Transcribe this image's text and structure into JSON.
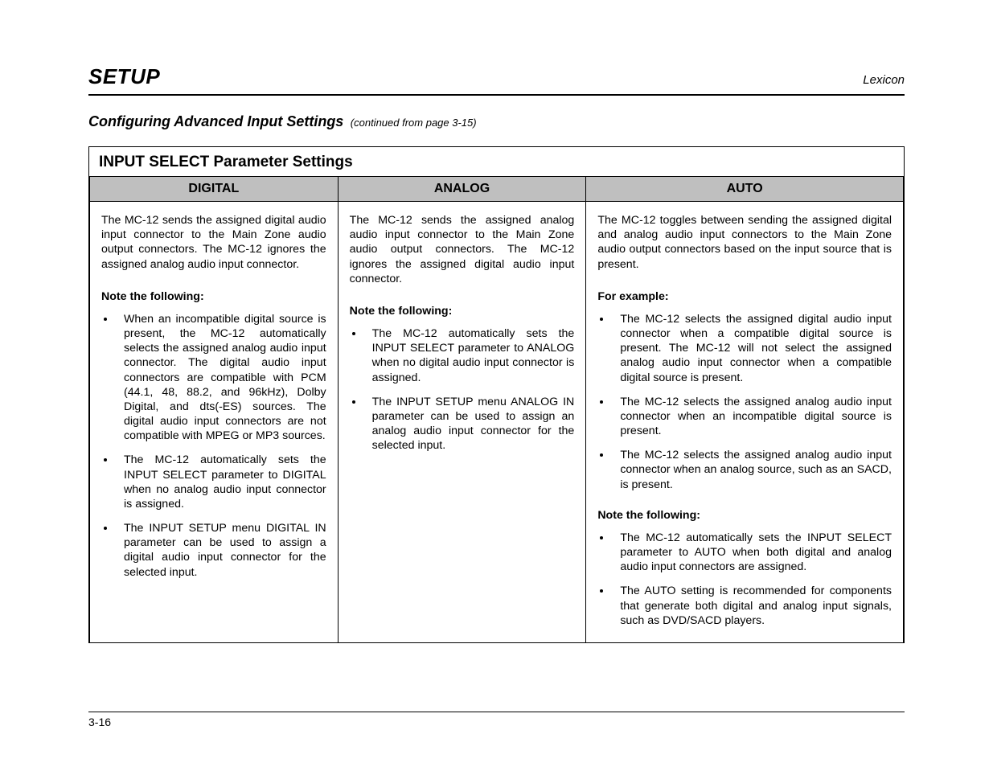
{
  "header": {
    "section": "SETUP",
    "brand": "Lexicon"
  },
  "subheading": {
    "main": "Configuring Advanced Input Settings",
    "continued": "(continued from page 3-15)"
  },
  "box_title": "INPUT SELECT Parameter Settings",
  "columns": {
    "digital": {
      "header": "DIGITAL",
      "intro": "The MC-12 sends the assigned digital audio input connector to the Main Zone audio output connectors. The MC-12 ignores the assigned analog audio input connector.",
      "note_heading": "Note the following:",
      "bullets": [
        "When an incompatible digital source is present, the MC-12 automatically selects the assigned analog audio input connector. The digital audio input connectors are compatible with PCM (44.1, 48, 88.2, and 96kHz), Dolby Digital, and dts(-ES) sources. The digital audio input connectors are not compatible with MPEG or MP3 sources.",
        "The MC-12 automatically sets the INPUT SELECT parameter to DIGITAL when no analog audio input connector is assigned.",
        "The INPUT SETUP menu DIGITAL IN parameter can be used to assign a digital audio input connector for the selected input."
      ]
    },
    "analog": {
      "header": "ANALOG",
      "intro": "The MC-12 sends the assigned analog audio input connector to the Main Zone audio output connectors. The MC-12 ignores the assigned digital audio input connector.",
      "note_heading": "Note the following:",
      "bullets": [
        "The MC-12 automatically sets the INPUT SELECT parameter to ANALOG when no digital audio input connector is assigned.",
        "The INPUT SETUP menu ANALOG IN parameter can be used to assign an analog audio input connector for the selected input."
      ]
    },
    "auto": {
      "header": "AUTO",
      "intro": "The MC-12 toggles between sending the assigned digital and analog audio input connectors to the Main Zone audio output connectors based on the input source that is present.",
      "example_heading": "For example:",
      "example_bullets": [
        "The MC-12 selects the assigned digital audio input connector when a compatible digital source is present. The MC-12 will not select the assigned analog audio input connector when a compatible digital source is present.",
        "The MC-12 selects the assigned analog audio input connector when an incompatible digital source is present.",
        "The MC-12 selects the assigned analog audio input connector when an analog source, such as an SACD, is present."
      ],
      "note_heading": "Note the following:",
      "note_bullets": [
        "The MC-12 automatically sets the INPUT SELECT parameter to AUTO when both digital and analog audio input connectors are assigned.",
        "The AUTO setting is recommended for components that generate both digital and analog input signals, such as DVD/SACD players."
      ]
    }
  },
  "footer": {
    "page": "3-16"
  },
  "colors": {
    "header_bg": "#bfbfbf",
    "border": "#000000",
    "text": "#000000",
    "page_bg": "#ffffff"
  }
}
